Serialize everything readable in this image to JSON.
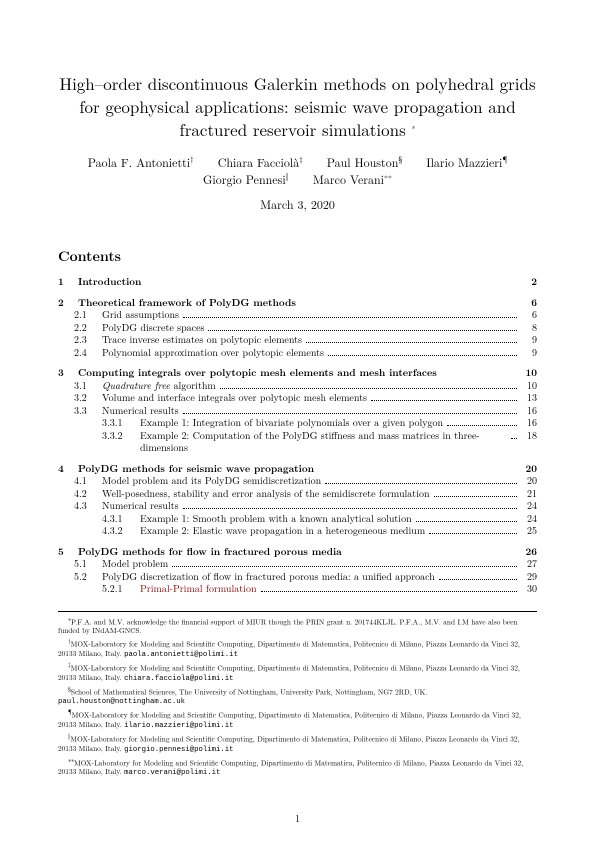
{
  "title": "High–order discontinuous Galerkin methods on polyhedral grids for geophysical applications: seismic wave propagation and fractured reservoir simulations ",
  "title_marker": "∗",
  "authors_row1": [
    {
      "name": "Paola F. Antonietti",
      "mark": "†"
    },
    {
      "name": "Chiara Facciolà",
      "mark": "‡"
    },
    {
      "name": "Paul Houston",
      "mark": "§"
    },
    {
      "name": "Ilario Mazzieri",
      "mark": "¶"
    }
  ],
  "authors_row2": [
    {
      "name": "Giorgio Pennesi",
      "mark": "‖"
    },
    {
      "name": "Marco Verani",
      "mark": "∗∗"
    }
  ],
  "date": "March 3, 2020",
  "contents_heading": "Contents",
  "toc": [
    {
      "type": "sec",
      "num": "1",
      "label": "Introduction",
      "page": "2"
    },
    {
      "type": "sec",
      "num": "2",
      "label": "Theoretical framework of PolyDG methods",
      "page": "6"
    },
    {
      "type": "sub",
      "num": "2.1",
      "label": "Grid assumptions",
      "page": "6"
    },
    {
      "type": "sub",
      "num": "2.2",
      "label": "PolyDG discrete spaces",
      "page": "8"
    },
    {
      "type": "sub",
      "num": "2.3",
      "label": "Trace inverse estimates on polytopic elements",
      "page": "9"
    },
    {
      "type": "sub",
      "num": "2.4",
      "label": "Polynomial approximation over polytopic elements",
      "page": "9"
    },
    {
      "type": "sec",
      "num": "3",
      "label": "Computing integrals over polytopic mesh elements and mesh interfaces",
      "page": "10"
    },
    {
      "type": "sub",
      "num": "3.1",
      "label": "Quadrature free algorithm",
      "page": "10",
      "italic_label": "Quadrature free",
      "label_rest": " algorithm"
    },
    {
      "type": "sub",
      "num": "3.2",
      "label": "Volume and interface integrals over polytopic mesh elements",
      "page": "13"
    },
    {
      "type": "sub",
      "num": "3.3",
      "label": "Numerical results",
      "page": "16"
    },
    {
      "type": "subsub",
      "num": "3.3.1",
      "label": "Example 1: Integration of bivariate polynomials over a given polygon",
      "page": "16"
    },
    {
      "type": "subsub",
      "num": "3.3.2",
      "label": "Example 2: Computation of the PolyDG stiffness and mass matrices in three-dimensions",
      "page": "18",
      "wrap": true
    },
    {
      "type": "sec",
      "num": "4",
      "label": "PolyDG methods for seismic wave propagation",
      "page": "20"
    },
    {
      "type": "sub",
      "num": "4.1",
      "label": "Model problem and its PolyDG semidiscretization",
      "page": "20"
    },
    {
      "type": "sub",
      "num": "4.2",
      "label": "Well-posedness, stability and error analysis of the semidiscrete formulation",
      "page": "21"
    },
    {
      "type": "sub",
      "num": "4.3",
      "label": "Numerical results",
      "page": "24"
    },
    {
      "type": "subsub",
      "num": "4.3.1",
      "label": "Example 1: Smooth problem with a known analytical solution",
      "page": "24"
    },
    {
      "type": "subsub",
      "num": "4.3.2",
      "label": "Example 2: Elastic wave propagation in a heterogeneous medium",
      "page": "25"
    },
    {
      "type": "sec",
      "num": "5",
      "label": "PolyDG methods for flow in fractured porous media",
      "page": "26"
    },
    {
      "type": "sub",
      "num": "5.1",
      "label": "Model problem",
      "page": "27"
    },
    {
      "type": "sub",
      "num": "5.2",
      "label": "PolyDG discretization of flow in fractured porous media: a unified approach",
      "page": "29"
    },
    {
      "type": "subsub",
      "num": "5.2.1",
      "label": "Primal-Primal formulation",
      "page": "30",
      "link": true
    }
  ],
  "footnotes": [
    {
      "mark": "∗",
      "text": "P.F.A. and M.V. acknowledge the financial support of MIUR though the PRIN grant n. 201744KLJL. P.F.A., M.V. and I.M have also been funded by INdAM-GNCS."
    },
    {
      "mark": "†",
      "text": "MOX-Laboratory for Modeling and Scientific Computing, Dipartimento di Matematica, Politecnico di Milano, Piazza Leonardo da Vinci 32, 20133 Milano, Italy. ",
      "email": "paola.antonietti@polimi.it"
    },
    {
      "mark": "‡",
      "text": "MOX-Laboratory for Modeling and Scientific Computing, Dipartimento di Matematica, Politecnico di Milano, Piazza Leonardo da Vinci 32, 20133 Milano, Italy. ",
      "email": "chiara.facciola@polimi.it"
    },
    {
      "mark": "§",
      "text": "School of Mathematical Sciences, The University of Nottingham, University Park, Nottingham, NG7 2RD, UK. ",
      "email": "paul.houston@nottingham.ac.uk"
    },
    {
      "mark": "¶",
      "text": "MOX-Laboratory for Modeling and Scientific Computing, Dipartimento di Matematica, Politecnico di Milano, Piazza Leonardo da Vinci 32, 20133 Milano, Italy. ",
      "email": "ilario.mazzieri@polimi.it"
    },
    {
      "mark": "‖",
      "text": "MOX-Laboratory for Modeling and Scientific Computing, Dipartimento di Matematica, Politecnico di Milano, Piazza Leonardo da Vinci 32, 20133 Milano, Italy. ",
      "email": "giorgio.pennesi@polimi.it"
    },
    {
      "mark": "∗∗",
      "text": "MOX-Laboratory for Modeling and Scientific Computing, Dipartimento di Matematica, Politecnico di Milano, Piazza Leonardo da Vinci 32, 20133 Milano, Italy. ",
      "email": "marco.verani@polimi.it"
    }
  ],
  "page_number": "1"
}
